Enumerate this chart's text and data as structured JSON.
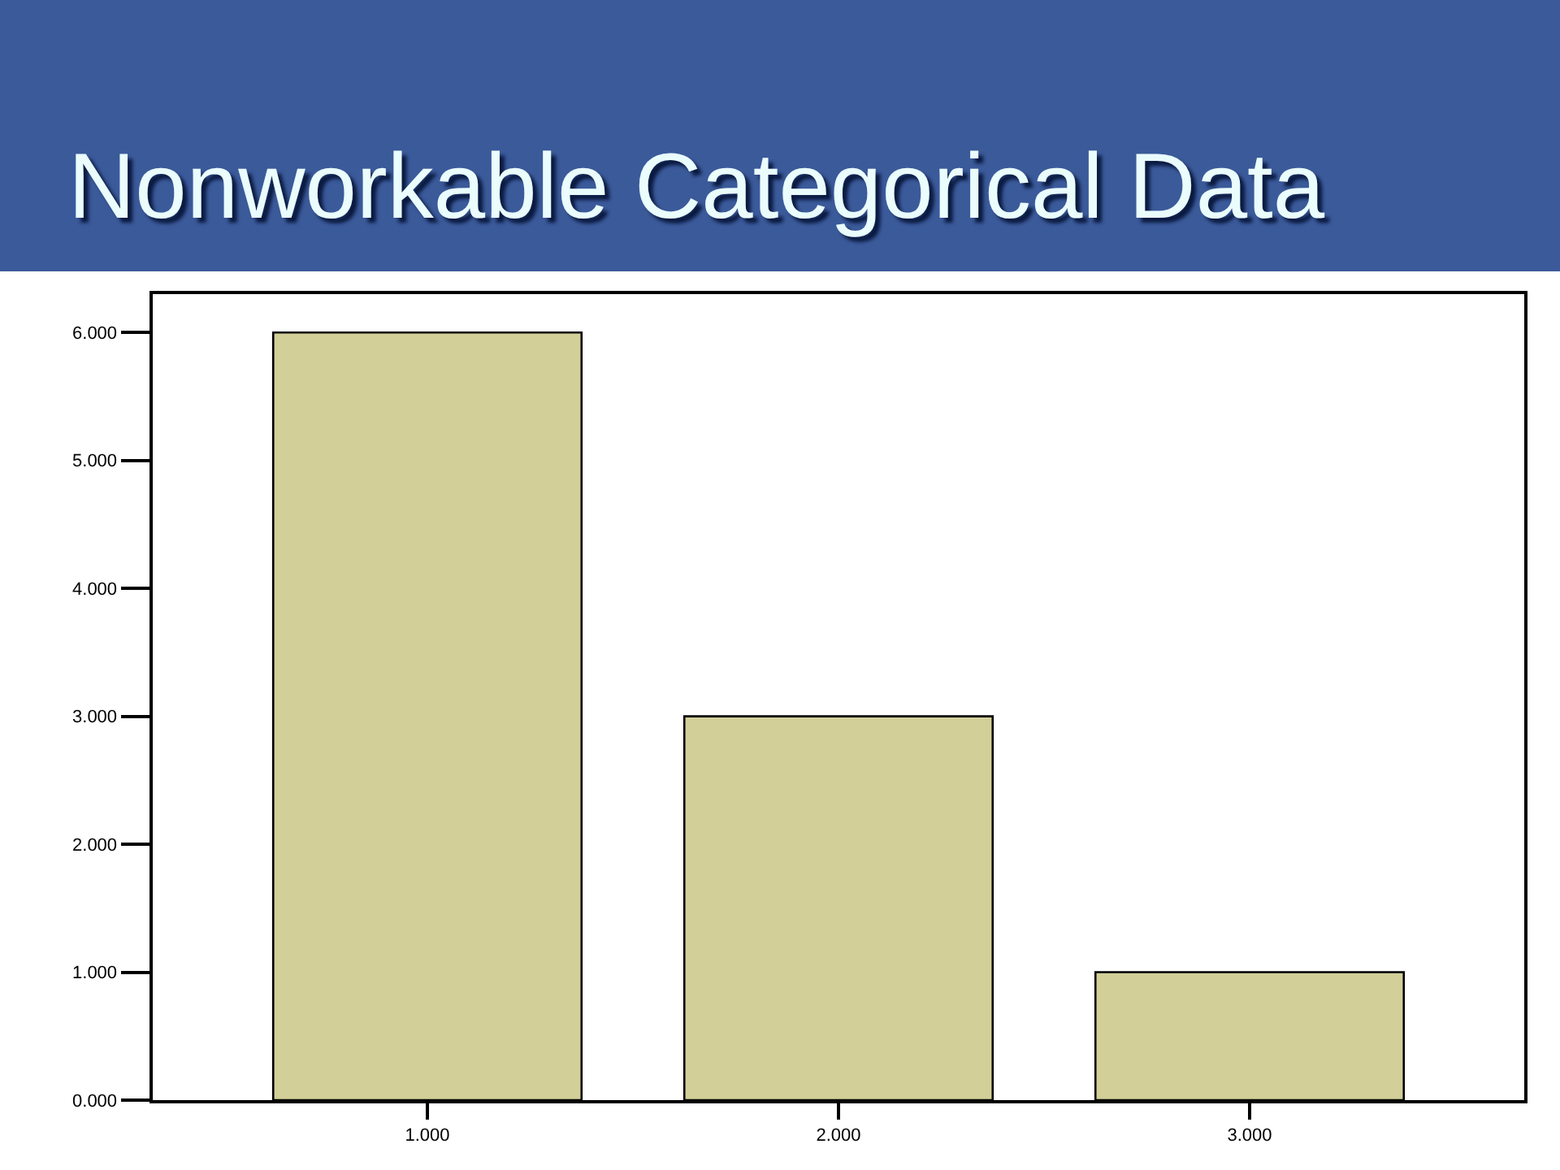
{
  "chart_data": {
    "type": "bar",
    "title": "Nonworkable Categorical Data",
    "categories": [
      "1.000",
      "2.000",
      "3.000"
    ],
    "values": [
      6,
      3,
      1
    ],
    "color": "#d3cf98",
    "ylim": [
      0,
      6.3
    ],
    "yticks": [
      {
        "value": 0,
        "label": "0.000"
      },
      {
        "value": 1,
        "label": "1.000"
      },
      {
        "value": 2,
        "label": "2.000"
      },
      {
        "value": 3,
        "label": "3.000"
      },
      {
        "value": 4,
        "label": "4.000"
      },
      {
        "value": 5,
        "label": "5.000"
      },
      {
        "value": 6,
        "label": "6.000"
      }
    ]
  }
}
